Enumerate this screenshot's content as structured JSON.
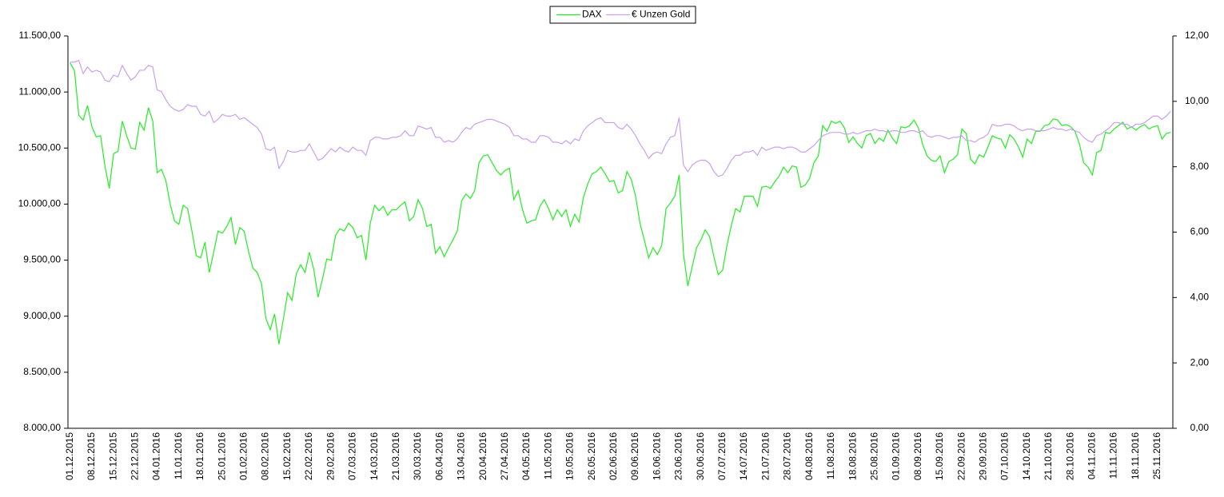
{
  "chart_data": {
    "type": "line",
    "categories": [
      "01.12.2015",
      null,
      null,
      null,
      null,
      "08.12.2015",
      null,
      null,
      null,
      null,
      "15.12.2015",
      null,
      null,
      null,
      null,
      "22.12.2015",
      null,
      null,
      null,
      null,
      "04.01.2016",
      null,
      null,
      null,
      null,
      "11.01.2016",
      null,
      null,
      null,
      null,
      "18.01.2016",
      null,
      null,
      null,
      null,
      "25.01.2016",
      null,
      null,
      null,
      null,
      "01.02.2016",
      null,
      null,
      null,
      null,
      "08.02.2016",
      null,
      null,
      null,
      null,
      "15.02.2016",
      null,
      null,
      null,
      null,
      "22.02.2016",
      null,
      null,
      null,
      null,
      "29.02.2016",
      null,
      null,
      null,
      null,
      "07.03.2016",
      null,
      null,
      null,
      null,
      "14.03.2016",
      null,
      null,
      null,
      null,
      "21.03.2016",
      null,
      null,
      null,
      null,
      "30.03.2016",
      null,
      null,
      null,
      null,
      "06.04.2016",
      null,
      null,
      null,
      null,
      "13.04.2016",
      null,
      null,
      null,
      null,
      "20.04.2016",
      null,
      null,
      null,
      null,
      "27.04.2016",
      null,
      null,
      null,
      null,
      "04.05.2016",
      null,
      null,
      null,
      null,
      "11.05.2016",
      null,
      null,
      null,
      null,
      "19.05.2016",
      null,
      null,
      null,
      null,
      "26.05.2016",
      null,
      null,
      null,
      null,
      "02.06.2016",
      null,
      null,
      null,
      null,
      "09.06.2016",
      null,
      null,
      null,
      null,
      "16.06.2016",
      null,
      null,
      null,
      null,
      "23.06.2016",
      null,
      null,
      null,
      null,
      "30.06.2016",
      null,
      null,
      null,
      null,
      "07.07.2016",
      null,
      null,
      null,
      null,
      "14.07.2016",
      null,
      null,
      null,
      null,
      "21.07.2016",
      null,
      null,
      null,
      null,
      "28.07.2016",
      null,
      null,
      null,
      null,
      "04.08.2016",
      null,
      null,
      null,
      null,
      "11.08.2016",
      null,
      null,
      null,
      null,
      "18.08.2016",
      null,
      null,
      null,
      null,
      "25.08.2016",
      null,
      null,
      null,
      null,
      "01.09.2016",
      null,
      null,
      null,
      null,
      "08.09.2016",
      null,
      null,
      null,
      null,
      "15.09.2016",
      null,
      null,
      null,
      null,
      "22.09.2016",
      null,
      null,
      null,
      null,
      "29.09.2016",
      null,
      null,
      null,
      null,
      "07.10.2016",
      null,
      null,
      null,
      null,
      "14.10.2016",
      null,
      null,
      null,
      null,
      "21.10.2016",
      null,
      null,
      null,
      null,
      "28.10.2016",
      null,
      null,
      null,
      null,
      "04.11.2016",
      null,
      null,
      null,
      null,
      "11.11.2016",
      null,
      null,
      null,
      null,
      "18.11.2016",
      null,
      null,
      null,
      null,
      "25.11.2016",
      null,
      null,
      null
    ],
    "series": [
      {
        "name": "DAX",
        "color": "#22ee22",
        "values": [
          11260,
          11190,
          10790,
          10750,
          10880,
          10690,
          10600,
          10610,
          10340,
          10140,
          10450,
          10470,
          10740,
          10610,
          10500,
          10490,
          10730,
          10660,
          10860,
          10740,
          10280,
          10310,
          10210,
          10000,
          9850,
          9820,
          9990,
          9960,
          9760,
          9540,
          9520,
          9660,
          9390,
          9570,
          9760,
          9740,
          9800,
          9880,
          9640,
          9790,
          9760,
          9580,
          9430,
          9390,
          9290,
          8980,
          8880,
          9020,
          8750,
          8970,
          9210,
          9140,
          9380,
          9460,
          9390,
          9570,
          9420,
          9170,
          9330,
          9510,
          9500,
          9720,
          9780,
          9760,
          9830,
          9790,
          9700,
          9720,
          9500,
          9830,
          9990,
          9940,
          9980,
          9900,
          9950,
          9950,
          9990,
          10020,
          9850,
          9890,
          10040,
          9960,
          9800,
          9820,
          9560,
          9620,
          9530,
          9610,
          9680,
          9760,
          10030,
          10090,
          10050,
          10120,
          10370,
          10430,
          10440,
          10370,
          10300,
          10260,
          10300,
          10320,
          10040,
          10120,
          9950,
          9830,
          9850,
          9860,
          9980,
          10040,
          9960,
          9860,
          9950,
          9890,
          9950,
          9800,
          9910,
          9840,
          10060,
          10180,
          10270,
          10290,
          10330,
          10270,
          10200,
          10210,
          10100,
          10120,
          10290,
          10220,
          10070,
          9830,
          9680,
          9520,
          9610,
          9550,
          9630,
          9960,
          10010,
          10070,
          10260,
          9560,
          9270,
          9440,
          9610,
          9680,
          9770,
          9710,
          9530,
          9370,
          9410,
          9630,
          9810,
          9960,
          9930,
          10070,
          10070,
          10070,
          9980,
          10150,
          10160,
          10140,
          10200,
          10250,
          10330,
          10280,
          10340,
          10330,
          10150,
          10170,
          10230,
          10370,
          10430,
          10700,
          10650,
          10740,
          10720,
          10740,
          10680,
          10550,
          10600,
          10540,
          10500,
          10610,
          10630,
          10540,
          10590,
          10560,
          10660,
          10590,
          10540,
          10690,
          10680,
          10700,
          10750,
          10680,
          10530,
          10430,
          10390,
          10380,
          10430,
          10280,
          10380,
          10400,
          10440,
          10670,
          10630,
          10400,
          10360,
          10440,
          10420,
          10510,
          10610,
          10590,
          10580,
          10500,
          10620,
          10580,
          10510,
          10420,
          10580,
          10540,
          10650,
          10650,
          10700,
          10710,
          10760,
          10750,
          10700,
          10710,
          10690,
          10650,
          10540,
          10370,
          10330,
          10260,
          10460,
          10480,
          10640,
          10630,
          10670,
          10700,
          10730,
          10670,
          10690,
          10660,
          10690,
          10710,
          10670,
          10690,
          10700,
          10580,
          10630,
          10640
        ]
      },
      {
        "name": "€ Unzen Gold",
        "color": "#c9a0f0",
        "axis": "y2",
        "values": [
          11.2,
          11.2,
          11.25,
          10.85,
          11.05,
          10.9,
          10.95,
          10.9,
          10.65,
          10.6,
          10.8,
          10.75,
          11.1,
          10.85,
          10.65,
          10.75,
          10.95,
          10.95,
          11.1,
          11.05,
          10.35,
          10.3,
          10.05,
          9.85,
          9.75,
          9.7,
          9.75,
          9.9,
          9.85,
          9.85,
          9.6,
          9.55,
          9.7,
          9.35,
          9.45,
          9.6,
          9.55,
          9.55,
          9.6,
          9.45,
          9.5,
          9.4,
          9.3,
          9.2,
          9.0,
          8.55,
          8.5,
          8.6,
          7.95,
          8.15,
          8.5,
          8.45,
          8.45,
          8.5,
          8.5,
          8.7,
          8.45,
          8.2,
          8.25,
          8.4,
          8.55,
          8.45,
          8.6,
          8.5,
          8.45,
          8.6,
          8.5,
          8.5,
          8.35,
          8.8,
          8.9,
          8.9,
          8.85,
          8.85,
          8.9,
          8.9,
          8.95,
          9.1,
          8.95,
          8.95,
          9.25,
          9.2,
          9.15,
          9.2,
          8.9,
          8.9,
          8.75,
          8.8,
          8.75,
          8.85,
          9.05,
          9.2,
          9.15,
          9.3,
          9.35,
          9.4,
          9.45,
          9.45,
          9.4,
          9.35,
          9.3,
          9.2,
          8.95,
          8.95,
          8.85,
          8.85,
          8.75,
          8.75,
          8.95,
          8.95,
          8.9,
          8.75,
          8.75,
          8.7,
          8.8,
          8.7,
          8.85,
          8.8,
          9.1,
          9.25,
          9.35,
          9.45,
          9.5,
          9.35,
          9.35,
          9.35,
          9.2,
          9.15,
          9.3,
          9.15,
          8.95,
          8.7,
          8.5,
          8.25,
          8.4,
          8.45,
          8.4,
          8.7,
          8.9,
          8.95,
          9.5,
          8.05,
          7.85,
          8.05,
          8.15,
          8.2,
          8.2,
          8.1,
          7.85,
          7.7,
          7.75,
          7.95,
          8.2,
          8.35,
          8.35,
          8.45,
          8.45,
          8.5,
          8.35,
          8.6,
          8.5,
          8.55,
          8.6,
          8.6,
          8.55,
          8.6,
          8.6,
          8.55,
          8.45,
          8.45,
          8.55,
          8.65,
          8.8,
          8.95,
          9.0,
          9.05,
          9.05,
          9.05,
          9.0,
          9.0,
          9.05,
          9.0,
          9.05,
          9.1,
          9.1,
          9.15,
          9.1,
          9.1,
          9.05,
          9.1,
          9.1,
          9.05,
          9.05,
          9.1,
          9.1,
          9.05,
          9.1,
          8.95,
          8.9,
          8.95,
          8.95,
          8.9,
          8.85,
          8.9,
          8.9,
          8.95,
          8.8,
          8.8,
          8.75,
          8.85,
          8.9,
          9.0,
          9.3,
          9.25,
          9.25,
          9.3,
          9.3,
          9.25,
          9.15,
          9.1,
          9.15,
          9.15,
          9.1,
          9.1,
          9.1,
          9.15,
          9.2,
          9.15,
          9.15,
          9.1,
          9.15,
          9.1,
          9.05,
          8.9,
          8.8,
          8.75,
          8.95,
          9.0,
          9.1,
          9.2,
          9.35,
          9.35,
          9.3,
          9.3,
          9.2,
          9.3,
          9.3,
          9.35,
          9.45,
          9.55,
          9.55,
          9.45,
          9.55,
          9.7
        ]
      }
    ],
    "ylim": [
      8000,
      11500
    ],
    "yticks": [
      {
        "value": 8000,
        "label": "8.000,00"
      },
      {
        "value": 8500,
        "label": "8.500,00"
      },
      {
        "value": 9000,
        "label": "9.000,00"
      },
      {
        "value": 9500,
        "label": "9.500,00"
      },
      {
        "value": 10000,
        "label": "10.000,00"
      },
      {
        "value": 10500,
        "label": "10.500,00"
      },
      {
        "value": 11000,
        "label": "11.000,00"
      },
      {
        "value": 11500,
        "label": "11.500,00"
      }
    ],
    "y2lim": [
      0,
      12
    ],
    "y2ticks": [
      {
        "value": 0,
        "label": "0,00"
      },
      {
        "value": 2,
        "label": "2,00"
      },
      {
        "value": 4,
        "label": "4,00"
      },
      {
        "value": 6,
        "label": "6,00"
      },
      {
        "value": 8,
        "label": "8,00"
      },
      {
        "value": 10,
        "label": "10,00"
      },
      {
        "value": 12,
        "label": "12,00"
      }
    ],
    "legend": "top",
    "grid": false
  }
}
